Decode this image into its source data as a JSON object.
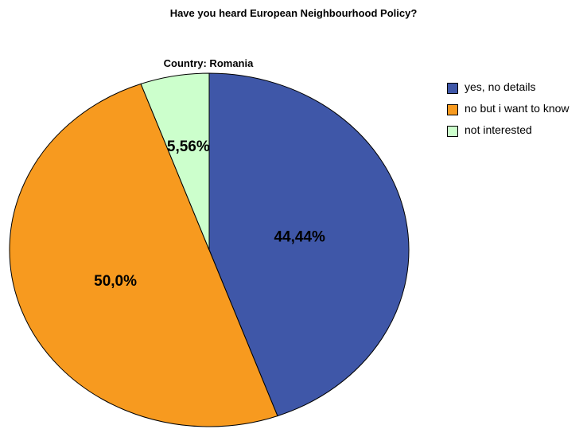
{
  "chart_data": {
    "type": "pie",
    "title": "Have you heard European Neighbourhood Policy?",
    "subtitle": "Country: Romania",
    "slices": [
      {
        "name": "yes, no details",
        "value": 44.44,
        "label": "44,44%",
        "color": "#3f57a8"
      },
      {
        "name": "no but i want to know",
        "value": 50.0,
        "label": "50,0%",
        "color": "#f79a1f"
      },
      {
        "name": "not interested",
        "value": 5.56,
        "label": "5,56%",
        "color": "#ccffcc"
      }
    ],
    "legend_position": "right"
  }
}
